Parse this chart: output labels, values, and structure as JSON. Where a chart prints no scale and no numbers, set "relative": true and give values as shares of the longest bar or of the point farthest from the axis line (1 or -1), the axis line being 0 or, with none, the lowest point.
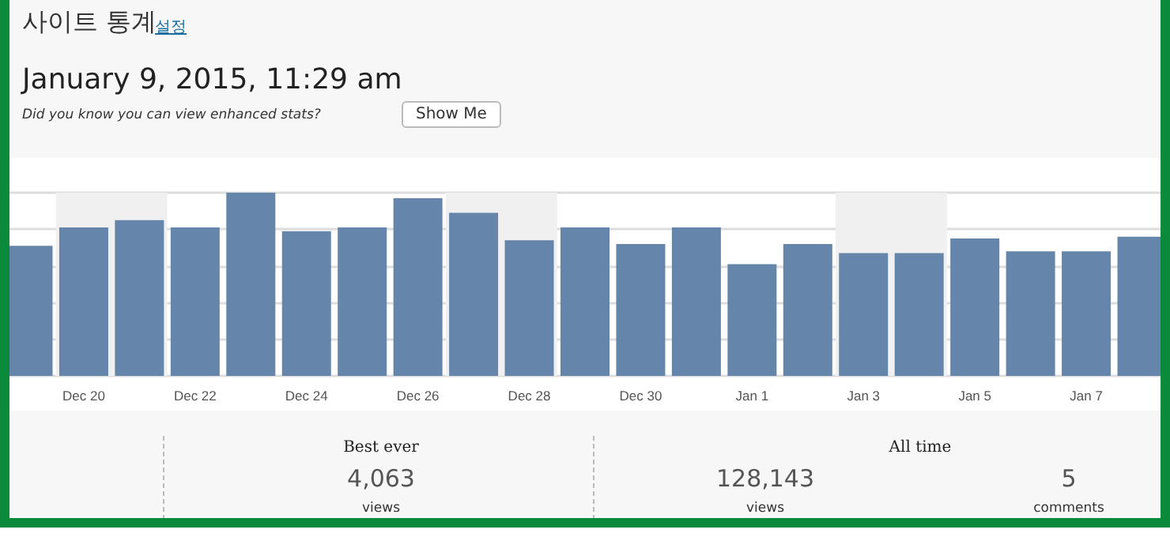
{
  "chart_data": {
    "type": "bar",
    "title": "사이트 통계",
    "subtitle": "January 9, 2015, 11:29 am",
    "annotations": [
      "설정",
      "Did you know you can view enhanced stats?",
      "Show Me",
      "Best ever",
      "4,063",
      "views",
      "All time",
      "128,143",
      "views",
      "5",
      "comments"
    ],
    "relative": true,
    "x": [
      "2014-12-19",
      "2014-12-20",
      "2014-12-21",
      "2014-12-22",
      "2014-12-23",
      "2014-12-24",
      "2014-12-25",
      "2014-12-26",
      "2014-12-27",
      "2014-12-28",
      "2014-12-29",
      "2014-12-30",
      "2014-12-31",
      "2015-01-01",
      "2015-01-02",
      "2015-01-03",
      "2015-01-04",
      "2015-01-05",
      "2015-01-06",
      "2015-01-07",
      "2015-01-08"
    ],
    "values": [
      0.71,
      0.81,
      0.85,
      0.81,
      1,
      0.79,
      0.81,
      0.97,
      0.89,
      0.74,
      0.81,
      0.72,
      0.81,
      0.61,
      0.72,
      0.67,
      0.67,
      0.75,
      0.68,
      0.68,
      0.76
    ],
    "color": "#6585ab",
    "xlim": [
      "2014-12-18T16:00",
      "2015-01-08T08:00"
    ],
    "xticks": [
      {
        "value": "2014-12-20",
        "label": "Dec 20"
      },
      {
        "value": "2014-12-22",
        "label": "Dec 22"
      },
      {
        "value": "2014-12-24",
        "label": "Dec 24"
      },
      {
        "value": "2014-12-26",
        "label": "Dec 26"
      },
      {
        "value": "2014-12-28",
        "label": "Dec 28"
      },
      {
        "value": "2014-12-30",
        "label": "Dec 30"
      },
      {
        "value": "2015-01-01",
        "label": "Jan 1"
      },
      {
        "value": "2015-01-03",
        "label": "Jan 3"
      },
      {
        "value": "2015-01-05",
        "label": "Jan 5"
      },
      {
        "value": "2015-01-07",
        "label": "Jan 7"
      }
    ],
    "bands": [
      {
        "axis": "x",
        "from": "2014-12-19T12:00",
        "to": "2014-12-21T12:00",
        "color": "#f0f0f0"
      },
      {
        "axis": "x",
        "from": "2014-12-26T12:00",
        "to": "2014-12-28T12:00",
        "color": "#f0f0f0"
      },
      {
        "axis": "x",
        "from": "2015-01-02T12:00",
        "to": "2015-01-04T12:00",
        "color": "#f0f0f0"
      }
    ],
    "grid": "y"
  }
}
